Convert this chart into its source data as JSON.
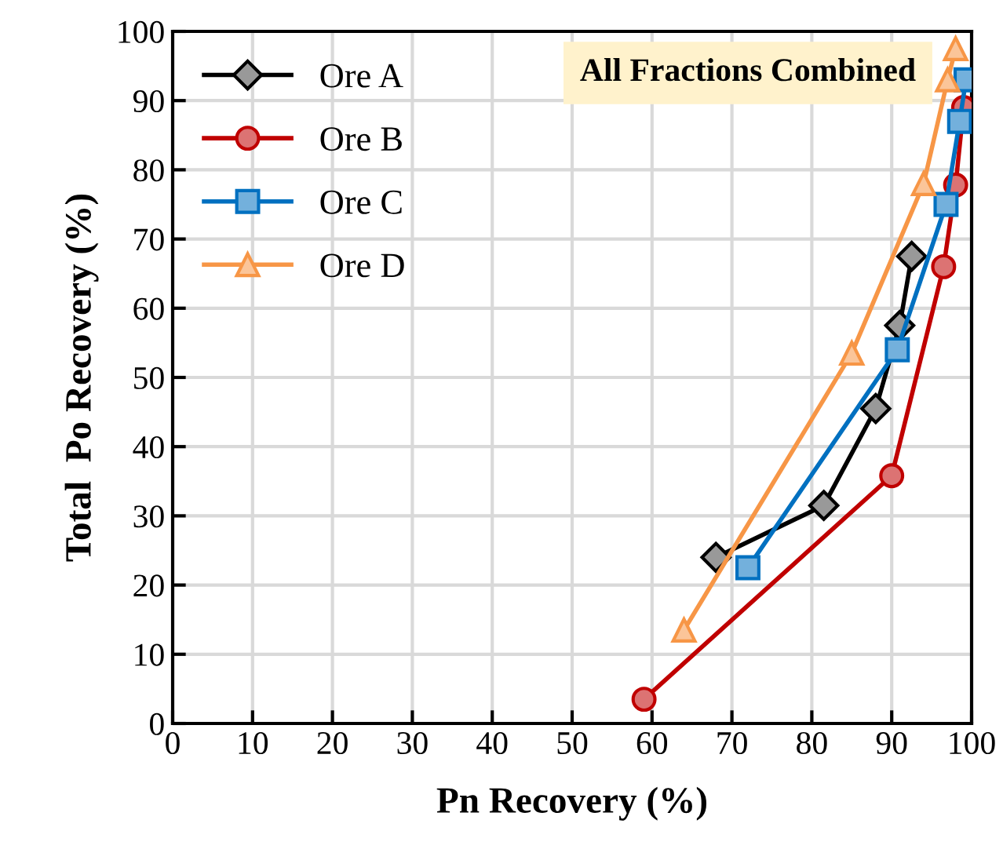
{
  "chart_data": {
    "type": "line",
    "xlabel": "Pn Recovery (%)",
    "ylabel": "Total  Po Recovery (%)",
    "xlim": [
      0,
      100
    ],
    "xticks": [
      0,
      10,
      20,
      30,
      40,
      50,
      60,
      70,
      80,
      90,
      100
    ],
    "ylim": [
      0,
      100
    ],
    "yticks": [
      0,
      10,
      20,
      30,
      40,
      50,
      60,
      70,
      80,
      90,
      100
    ],
    "grid": true,
    "legend": "top left",
    "line_style": "solid",
    "annotations": [
      "All Fractions Combined"
    ],
    "series": [
      {
        "name": "Ore A",
        "color": "#000000",
        "marker": "diamond",
        "x": [
          68,
          81.5,
          88,
          91,
          92.5
        ],
        "values": [
          24,
          31.5,
          45.5,
          57.5,
          67.5
        ]
      },
      {
        "name": "Ore B",
        "color": "#c00000",
        "marker": "circle",
        "x": [
          59,
          90,
          96.5,
          98,
          99
        ],
        "values": [
          3.5,
          35.8,
          66,
          77.8,
          89
        ]
      },
      {
        "name": "Ore C",
        "color": "#0070c0",
        "marker": "square",
        "x": [
          72,
          90.7,
          96.8,
          98.5,
          99.3
        ],
        "values": [
          22.5,
          54,
          75,
          87,
          93
        ]
      },
      {
        "name": "Ore D",
        "color": "#f79646",
        "marker": "triangle",
        "x": [
          64,
          85,
          94,
          97,
          98
        ],
        "values": [
          13.5,
          53.5,
          78,
          93,
          97.5
        ]
      }
    ]
  }
}
